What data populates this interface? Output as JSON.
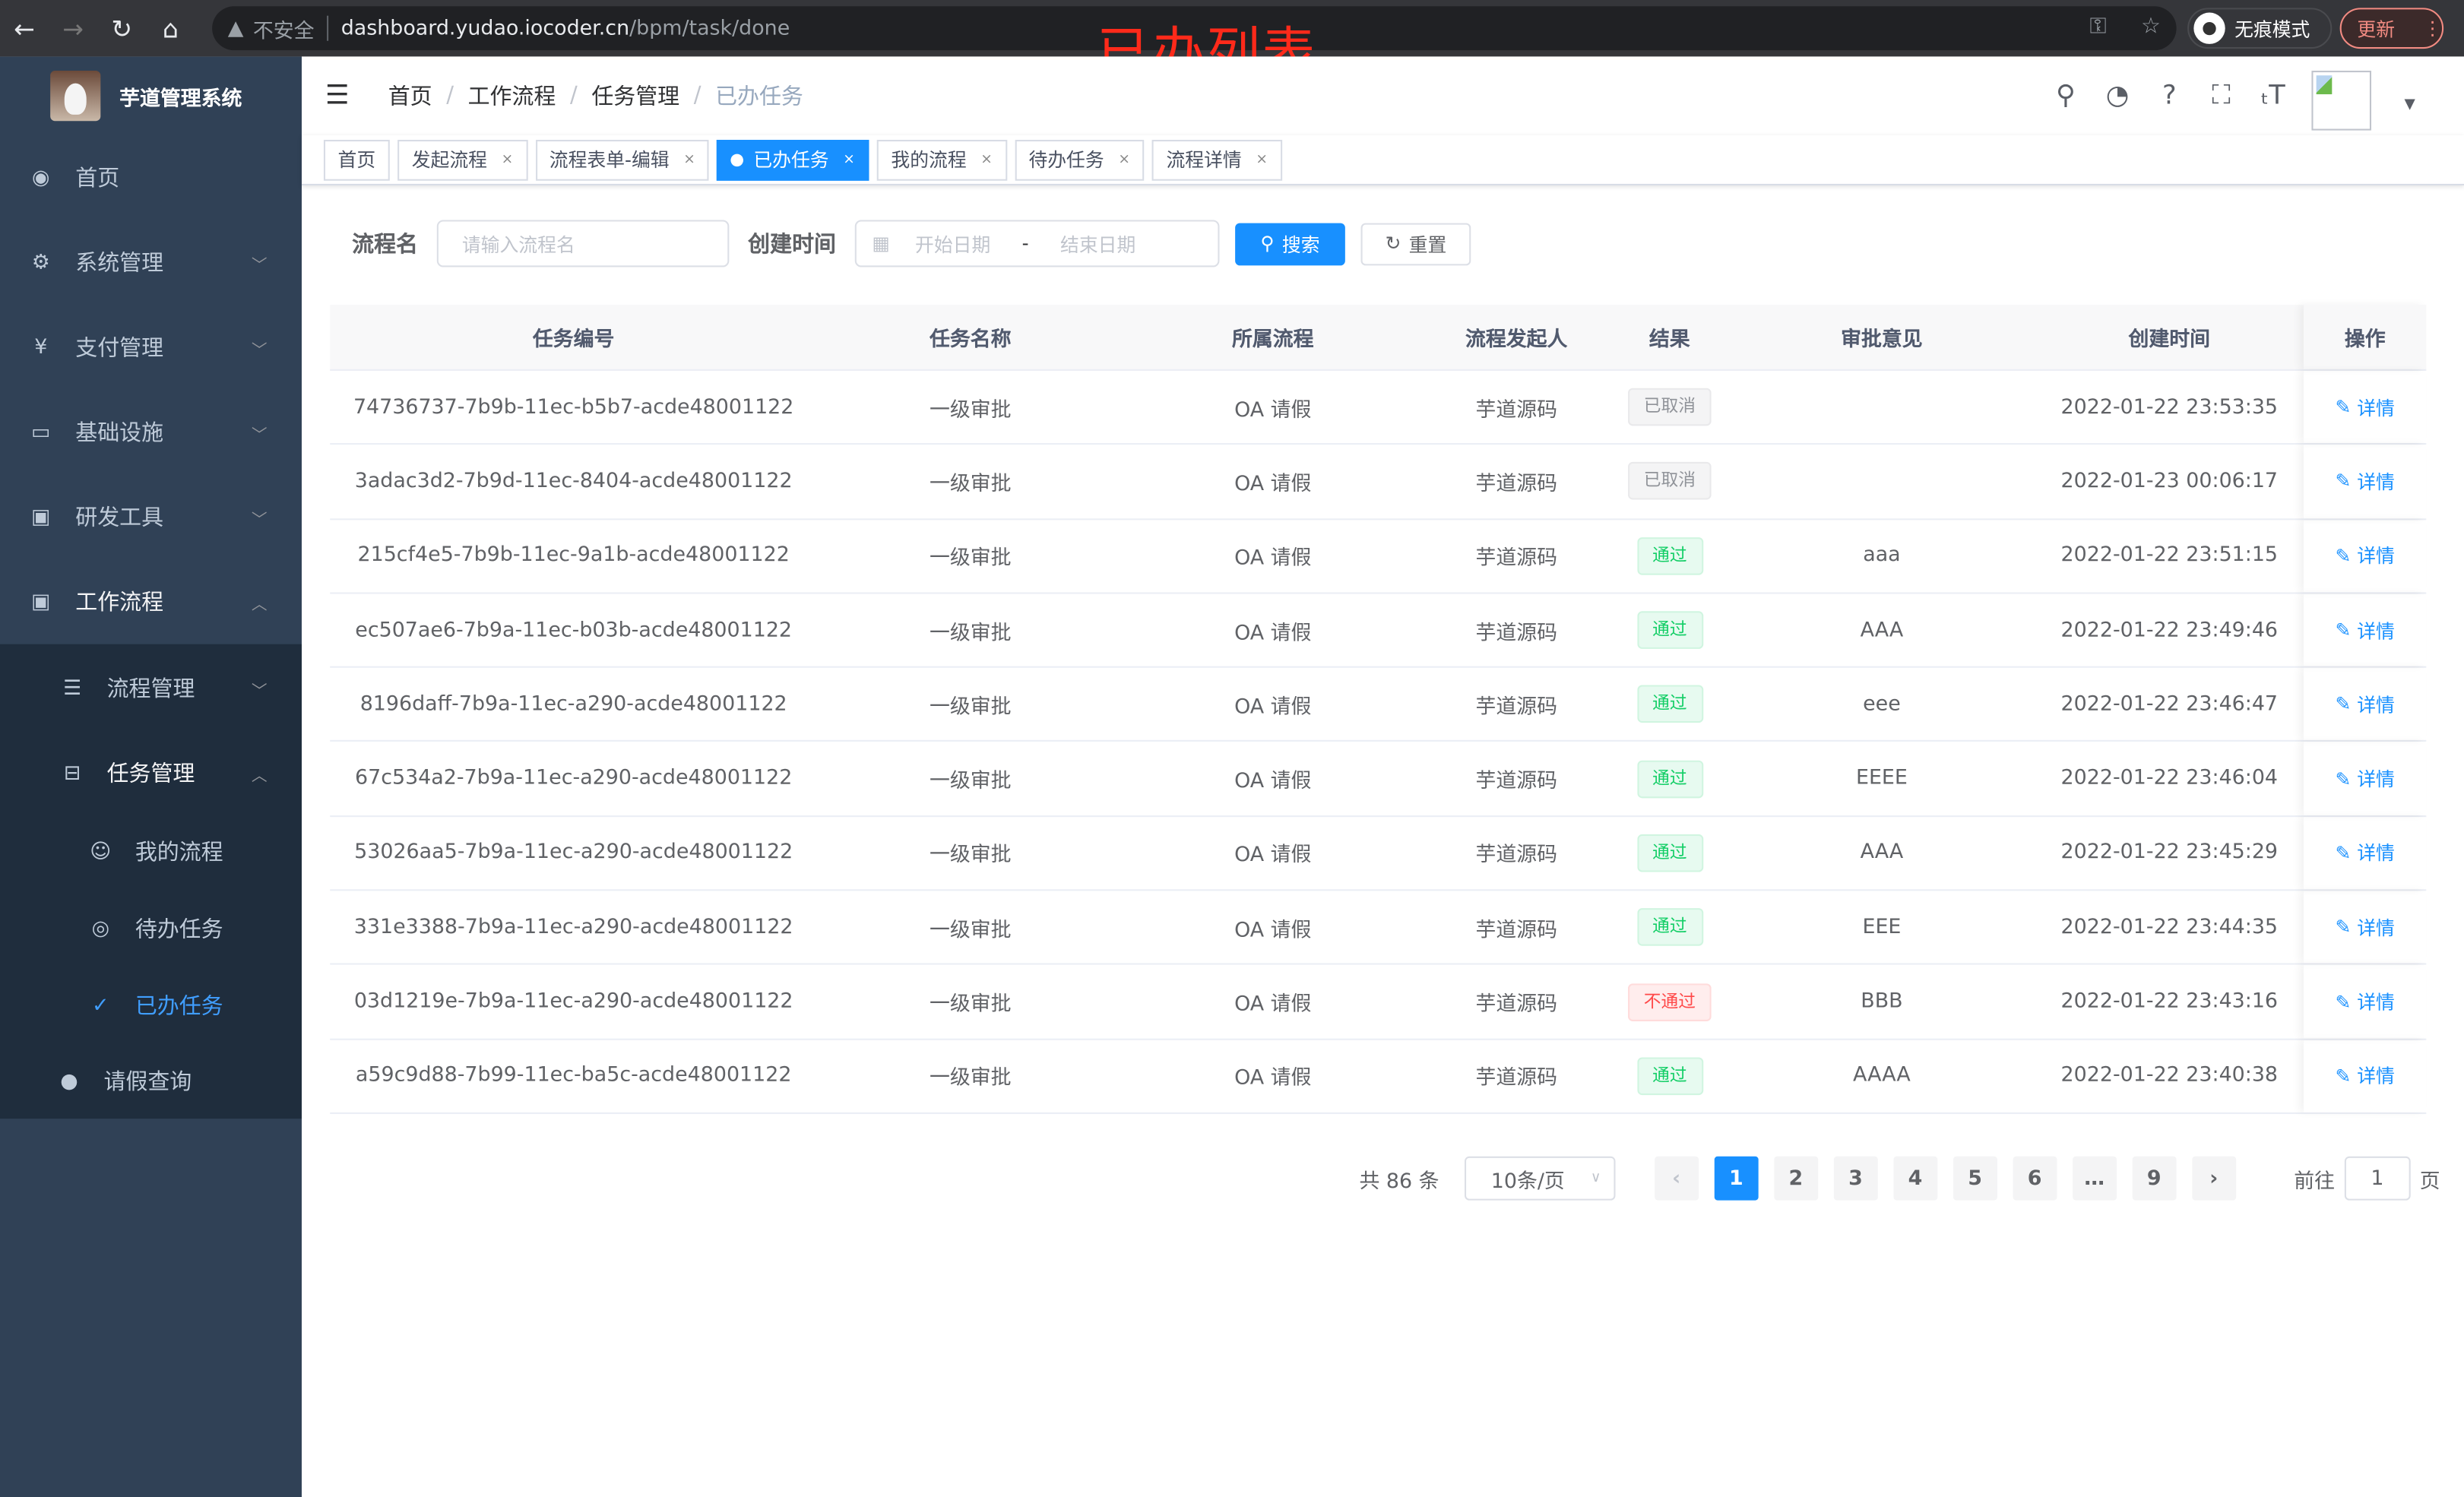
{
  "browser": {
    "insecure_label": "不安全",
    "url_host": "dashboard.yudao.iocoder.cn",
    "url_path": "/bpm/task/done",
    "incognito_label": "无痕模式",
    "update_label": "更新"
  },
  "annotation": "已办列表",
  "sidebar": {
    "title": "芋道管理系统",
    "items": [
      {
        "label": "首页",
        "icon": "dashboard-icon"
      },
      {
        "label": "系统管理",
        "icon": "gear-icon"
      },
      {
        "label": "支付管理",
        "icon": "yen-icon"
      },
      {
        "label": "基础设施",
        "icon": "monitor-icon"
      },
      {
        "label": "研发工具",
        "icon": "toolbox-icon"
      },
      {
        "label": "工作流程",
        "icon": "toolbox-icon"
      },
      {
        "label": "流程管理",
        "icon": "list-icon"
      },
      {
        "label": "任务管理",
        "icon": "tree-icon"
      },
      {
        "label": "我的流程",
        "icon": "people-icon"
      },
      {
        "label": "待办任务",
        "icon": "eye-icon"
      },
      {
        "label": "已办任务",
        "icon": "checked-icon"
      },
      {
        "label": "请假查询",
        "icon": "user-icon"
      }
    ],
    "active": "已办任务"
  },
  "breadcrumb": [
    "首页",
    "工作流程",
    "任务管理",
    "已办任务"
  ],
  "tags": [
    {
      "label": "首页"
    },
    {
      "label": "发起流程"
    },
    {
      "label": "流程表单-编辑"
    },
    {
      "label": "已办任务",
      "active": true
    },
    {
      "label": "我的流程"
    },
    {
      "label": "待办任务"
    },
    {
      "label": "流程详情"
    }
  ],
  "filter": {
    "name_label": "流程名",
    "name_placeholder": "请输入流程名",
    "time_label": "创建时间",
    "start_placeholder": "开始日期",
    "range_sep": "-",
    "end_placeholder": "结束日期",
    "search": "搜索",
    "reset": "重置"
  },
  "table": {
    "columns": [
      "任务编号",
      "任务名称",
      "所属流程",
      "流程发起人",
      "结果",
      "审批意见",
      "创建时间",
      "操作"
    ],
    "action_label": "详情",
    "rows": [
      {
        "id": "74736737-7b9b-11ec-b5b7-acde48001122",
        "name": "一级审批",
        "process": "OA 请假",
        "starter": "芋道源码",
        "result": "已取消",
        "status": "cancel",
        "comment": "",
        "time": "2022-01-22 23:53:35"
      },
      {
        "id": "3adac3d2-7b9d-11ec-8404-acde48001122",
        "name": "一级审批",
        "process": "OA 请假",
        "starter": "芋道源码",
        "result": "已取消",
        "status": "cancel",
        "comment": "",
        "time": "2022-01-23 00:06:17"
      },
      {
        "id": "215cf4e5-7b9b-11ec-9a1b-acde48001122",
        "name": "一级审批",
        "process": "OA 请假",
        "starter": "芋道源码",
        "result": "通过",
        "status": "pass",
        "comment": "aaa",
        "time": "2022-01-22 23:51:15"
      },
      {
        "id": "ec507ae6-7b9a-11ec-b03b-acde48001122",
        "name": "一级审批",
        "process": "OA 请假",
        "starter": "芋道源码",
        "result": "通过",
        "status": "pass",
        "comment": "AAA",
        "time": "2022-01-22 23:49:46"
      },
      {
        "id": "8196daff-7b9a-11ec-a290-acde48001122",
        "name": "一级审批",
        "process": "OA 请假",
        "starter": "芋道源码",
        "result": "通过",
        "status": "pass",
        "comment": "eee",
        "time": "2022-01-22 23:46:47"
      },
      {
        "id": "67c534a2-7b9a-11ec-a290-acde48001122",
        "name": "一级审批",
        "process": "OA 请假",
        "starter": "芋道源码",
        "result": "通过",
        "status": "pass",
        "comment": "EEEE",
        "time": "2022-01-22 23:46:04"
      },
      {
        "id": "53026aa5-7b9a-11ec-a290-acde48001122",
        "name": "一级审批",
        "process": "OA 请假",
        "starter": "芋道源码",
        "result": "通过",
        "status": "pass",
        "comment": "AAA",
        "time": "2022-01-22 23:45:29"
      },
      {
        "id": "331e3388-7b9a-11ec-a290-acde48001122",
        "name": "一级审批",
        "process": "OA 请假",
        "starter": "芋道源码",
        "result": "通过",
        "status": "pass",
        "comment": "EEE",
        "time": "2022-01-22 23:44:35"
      },
      {
        "id": "03d1219e-7b9a-11ec-a290-acde48001122",
        "name": "一级审批",
        "process": "OA 请假",
        "starter": "芋道源码",
        "result": "不通过",
        "status": "fail",
        "comment": "BBB",
        "time": "2022-01-22 23:43:16"
      },
      {
        "id": "a59c9d88-7b99-11ec-ba5c-acde48001122",
        "name": "一级审批",
        "process": "OA 请假",
        "starter": "芋道源码",
        "result": "通过",
        "status": "pass",
        "comment": "AAAA",
        "time": "2022-01-22 23:40:38"
      }
    ]
  },
  "pagination": {
    "total_text": "共 86 条",
    "page_size": "10条/页",
    "pages": [
      "1",
      "2",
      "3",
      "4",
      "5",
      "6",
      "…",
      "9"
    ],
    "current": "1",
    "goto_label": "前往",
    "goto_value": "1",
    "page_suffix": "页"
  },
  "colors": {
    "sidebar": "#304156",
    "accent": "#1890ff",
    "pass": "#13ce66",
    "fail": "#ff4949"
  }
}
